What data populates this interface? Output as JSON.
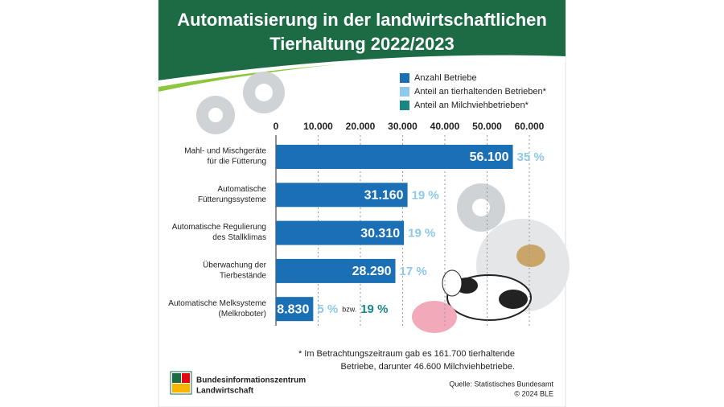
{
  "chart_data": {
    "type": "bar",
    "orientation": "horizontal",
    "title": [
      "Automatisierung in der landwirtschaftlichen",
      "Tierhaltung 2022/2023"
    ],
    "categories": [
      [
        "Mahl- und Mischgeräte",
        "für die Fütterung"
      ],
      [
        "Automatische",
        "Fütterungssysteme"
      ],
      [
        "Automatische Regulierung",
        "des Stallklimas"
      ],
      [
        "Überwachung der",
        "Tierbestände"
      ],
      [
        "Automatische Melksysteme",
        "(Melkroboter)"
      ]
    ],
    "series": [
      {
        "name": "Anzahl Betriebe",
        "color": "#1b6fb4",
        "values": [
          56100,
          31160,
          30310,
          28290,
          8830
        ],
        "value_labels": [
          "56.100",
          "31.160",
          "30.310",
          "28.290",
          "8.830"
        ]
      },
      {
        "name": "Anteil an tierhaltenden Betrieben*",
        "color": "#8cc9ea",
        "values": [
          35,
          19,
          19,
          17,
          5
        ],
        "value_labels": [
          "35 %",
          "19 %",
          "19 %",
          "17 %",
          "5 %"
        ]
      },
      {
        "name": "Anteil an Milchviehbetrieben*",
        "color": "#1a8585",
        "values": [
          null,
          null,
          null,
          null,
          19
        ],
        "value_labels": [
          null,
          null,
          null,
          null,
          "19 %"
        ]
      }
    ],
    "connector": "bzw.",
    "xlim": [
      0,
      60000
    ],
    "xticks": [
      0,
      {
        "value": 10000,
        "label": "10.000"
      },
      {
        "value": 20000,
        "label": "20.000"
      },
      {
        "value": 30000,
        "label": "30.000"
      },
      {
        "value": 40000,
        "label": "40.000"
      },
      {
        "value": 50000,
        "label": "50.000"
      },
      {
        "value": 60000,
        "label": "60.000"
      }
    ],
    "grid": true,
    "footnote": [
      "* Im Betrachtungszeitraum gab es 161.700 tierhaltende",
      "Betriebe, darunter 46.600 Milchviehbetriebe."
    ],
    "source": [
      "Quelle: Statistisches Bundesamt",
      "© 2024 BLE"
    ],
    "publisher": [
      "Bundesinformationszentrum",
      "Landwirtschaft"
    ]
  }
}
